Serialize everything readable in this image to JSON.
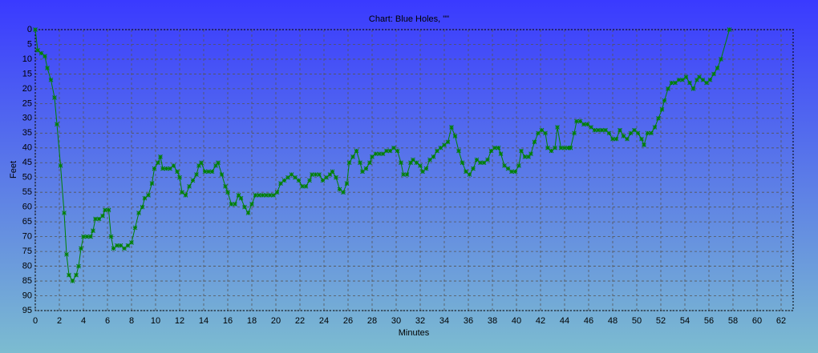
{
  "chart_data": {
    "type": "line",
    "title": "Chart: Blue Holes, \"\"",
    "xlabel": "Minutes",
    "ylabel": "Feet",
    "x": [
      0,
      0.2,
      0.5,
      0.8,
      1.0,
      1.3,
      1.6,
      1.8,
      2.1,
      2.4,
      2.6,
      2.8,
      3.1,
      3.4,
      3.6,
      3.8,
      4.0,
      4.3,
      4.6,
      4.8,
      5.0,
      5.3,
      5.6,
      5.8,
      6.1,
      6.3,
      6.5,
      6.8,
      7.1,
      7.4,
      7.7,
      8.0,
      8.3,
      8.6,
      8.9,
      9.1,
      9.4,
      9.7,
      9.9,
      10.2,
      10.4,
      10.6,
      10.9,
      11.2,
      11.5,
      11.8,
      12.0,
      12.2,
      12.5,
      12.8,
      13.1,
      13.4,
      13.6,
      13.8,
      14.1,
      14.4,
      14.7,
      15.0,
      15.2,
      15.5,
      15.8,
      16.0,
      16.3,
      16.6,
      16.9,
      17.1,
      17.4,
      17.7,
      18.0,
      18.3,
      18.6,
      18.9,
      19.2,
      19.5,
      19.8,
      20.1,
      20.4,
      20.7,
      21.0,
      21.3,
      21.6,
      21.9,
      22.2,
      22.5,
      22.8,
      23.0,
      23.3,
      23.6,
      23.9,
      24.2,
      24.5,
      24.7,
      25.0,
      25.3,
      25.6,
      25.9,
      26.1,
      26.4,
      26.7,
      27.0,
      27.2,
      27.5,
      27.8,
      28.0,
      28.3,
      28.6,
      28.9,
      29.2,
      29.5,
      29.8,
      30.1,
      30.4,
      30.6,
      30.9,
      31.2,
      31.4,
      31.7,
      32.0,
      32.2,
      32.5,
      32.8,
      33.1,
      33.4,
      33.7,
      34.0,
      34.3,
      34.6,
      34.9,
      35.2,
      35.5,
      35.8,
      36.1,
      36.4,
      36.7,
      37.0,
      37.3,
      37.6,
      37.9,
      38.2,
      38.5,
      38.7,
      39.0,
      39.3,
      39.6,
      39.9,
      40.2,
      40.4,
      40.7,
      41.0,
      41.2,
      41.5,
      41.8,
      42.1,
      42.4,
      42.6,
      42.9,
      43.2,
      43.4,
      43.7,
      44.0,
      44.3,
      44.5,
      44.8,
      45.0,
      45.3,
      45.6,
      45.9,
      46.2,
      46.5,
      46.8,
      47.1,
      47.4,
      47.7,
      48.0,
      48.3,
      48.6,
      48.9,
      49.2,
      49.5,
      49.8,
      50.1,
      50.4,
      50.6,
      50.9,
      51.2,
      51.5,
      51.8,
      52.1,
      52.3,
      52.6,
      52.9,
      53.2,
      53.5,
      53.8,
      54.1,
      54.4,
      54.7,
      55.0,
      55.2,
      55.5,
      55.8,
      56.1,
      56.4,
      56.7,
      57.0,
      57.7
    ],
    "values": [
      0,
      7,
      8,
      9,
      13,
      17,
      23,
      32,
      46,
      62,
      76,
      83,
      85,
      83,
      80,
      74,
      70,
      70,
      70,
      68,
      64,
      64,
      63,
      61,
      61,
      70,
      74,
      73,
      73,
      74,
      73,
      72,
      67,
      62,
      60,
      57,
      56,
      52,
      47,
      45,
      43,
      47,
      47,
      47,
      46,
      48,
      50,
      55,
      56,
      53,
      51,
      49,
      46,
      45,
      48,
      48,
      48,
      46,
      45,
      49,
      53,
      55,
      59,
      59,
      56,
      57,
      60,
      62,
      59,
      56,
      56,
      56,
      56,
      56,
      56,
      55,
      52,
      51,
      50,
      49,
      50,
      51,
      53,
      53,
      51,
      49,
      49,
      49,
      51,
      50,
      49,
      48,
      50,
      54,
      55,
      52,
      45,
      43,
      41,
      45,
      48,
      47,
      45,
      43,
      42,
      42,
      42,
      41,
      41,
      40,
      41,
      45,
      49,
      49,
      45,
      44,
      45,
      46,
      48,
      47,
      44,
      43,
      41,
      40,
      39,
      38,
      33,
      36,
      41,
      45,
      48,
      49,
      47,
      44,
      45,
      45,
      44,
      41,
      40,
      40,
      42,
      46,
      47,
      48,
      48,
      46,
      41,
      43,
      43,
      42,
      38,
      35,
      34,
      35,
      40,
      41,
      40,
      33,
      40,
      40,
      40,
      40,
      35,
      31,
      31,
      32,
      32,
      33,
      34,
      34,
      34,
      34,
      35,
      37,
      37,
      34,
      36,
      37,
      35,
      34,
      35,
      37,
      39,
      35,
      35,
      33,
      30,
      27,
      24,
      20,
      18,
      18,
      17,
      17,
      16,
      18,
      20,
      17,
      16,
      17,
      18,
      17,
      15,
      13,
      10,
      0
    ],
    "color": "#008000",
    "xlim": [
      0,
      63
    ],
    "ylim": [
      0,
      95
    ],
    "y_inverted": true,
    "grid": true,
    "xticks": [
      0,
      2,
      4,
      6,
      8,
      10,
      12,
      14,
      16,
      18,
      20,
      22,
      24,
      26,
      28,
      30,
      32,
      34,
      36,
      38,
      40,
      42,
      44,
      46,
      48,
      50,
      52,
      54,
      56,
      58,
      60,
      62
    ],
    "yticks": [
      0,
      5,
      10,
      15,
      20,
      25,
      30,
      35,
      40,
      45,
      50,
      55,
      60,
      65,
      70,
      75,
      80,
      85,
      90,
      95
    ]
  }
}
